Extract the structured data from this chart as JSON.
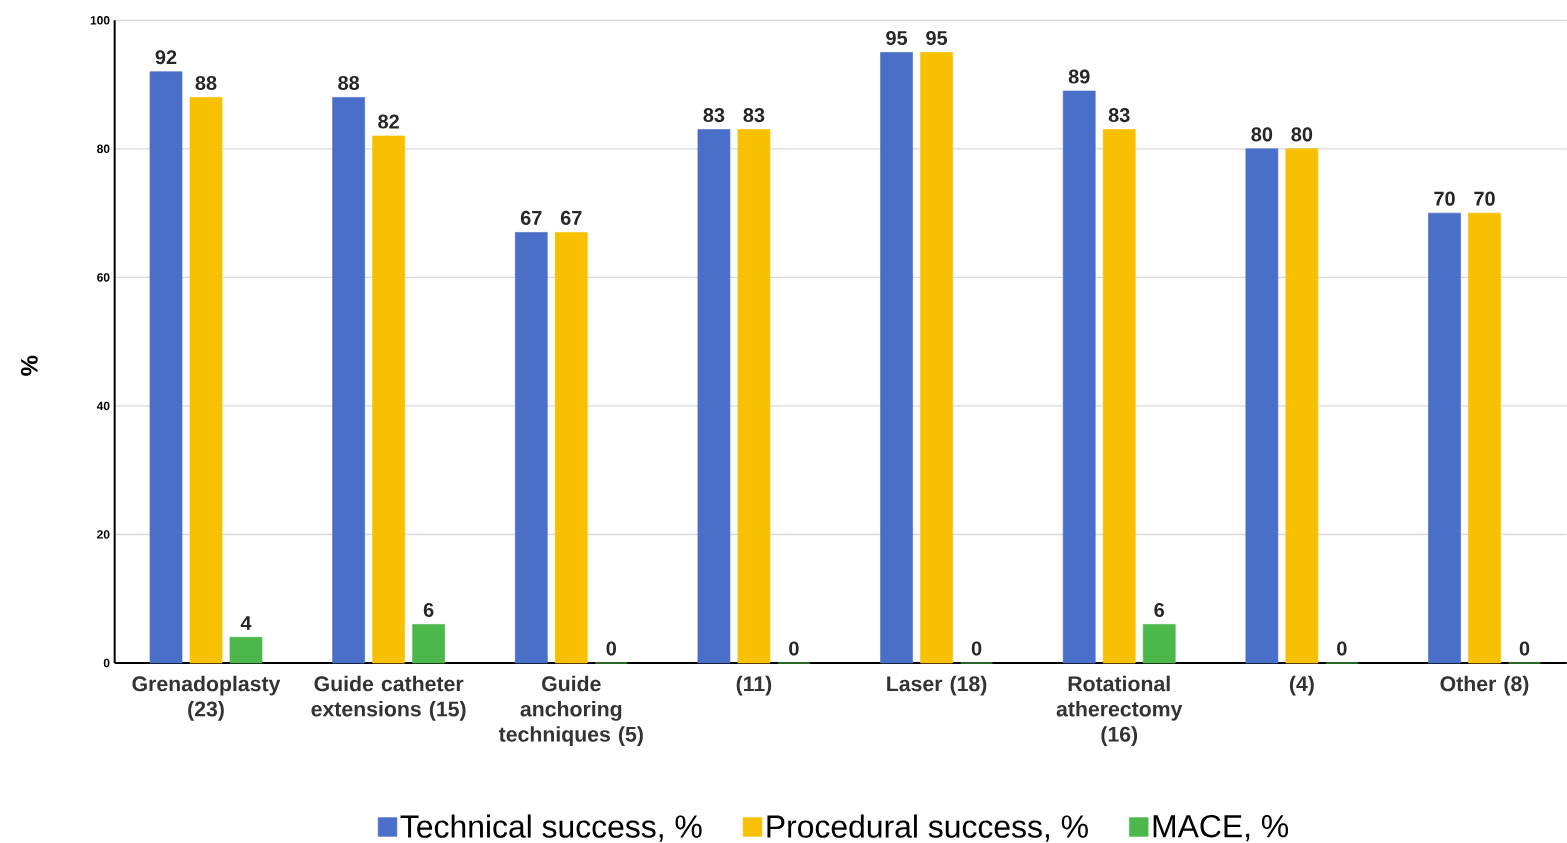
{
  "chart_data": {
    "type": "bar",
    "ylabel": "%",
    "categories": [
      "Grenadoplasty (23)",
      "Guide catheter extensions (15)",
      "Guide anchoring techniques (5)",
      "(11)",
      "Laser (18)",
      "Rotational atherectomy (16)",
      "(4)",
      "Other (8)"
    ],
    "series": [
      {
        "name": "Technical success, %",
        "color": "#4a6fc8",
        "values": [
          92,
          88,
          67,
          83,
          95,
          89,
          80,
          70
        ]
      },
      {
        "name": "Procedural success, %",
        "color": "#f7c000",
        "values": [
          88,
          82,
          67,
          83,
          95,
          83,
          80,
          70
        ]
      },
      {
        "name": "MACE, %",
        "color": "#4cb84c",
        "values": [
          4,
          6,
          0,
          0,
          0,
          6,
          0,
          0
        ]
      }
    ],
    "ylim": [
      0,
      100
    ],
    "yticks": [
      0,
      20,
      40,
      60,
      80,
      100
    ],
    "grid": "y",
    "legend": "bottom",
    "data_labels": true
  }
}
